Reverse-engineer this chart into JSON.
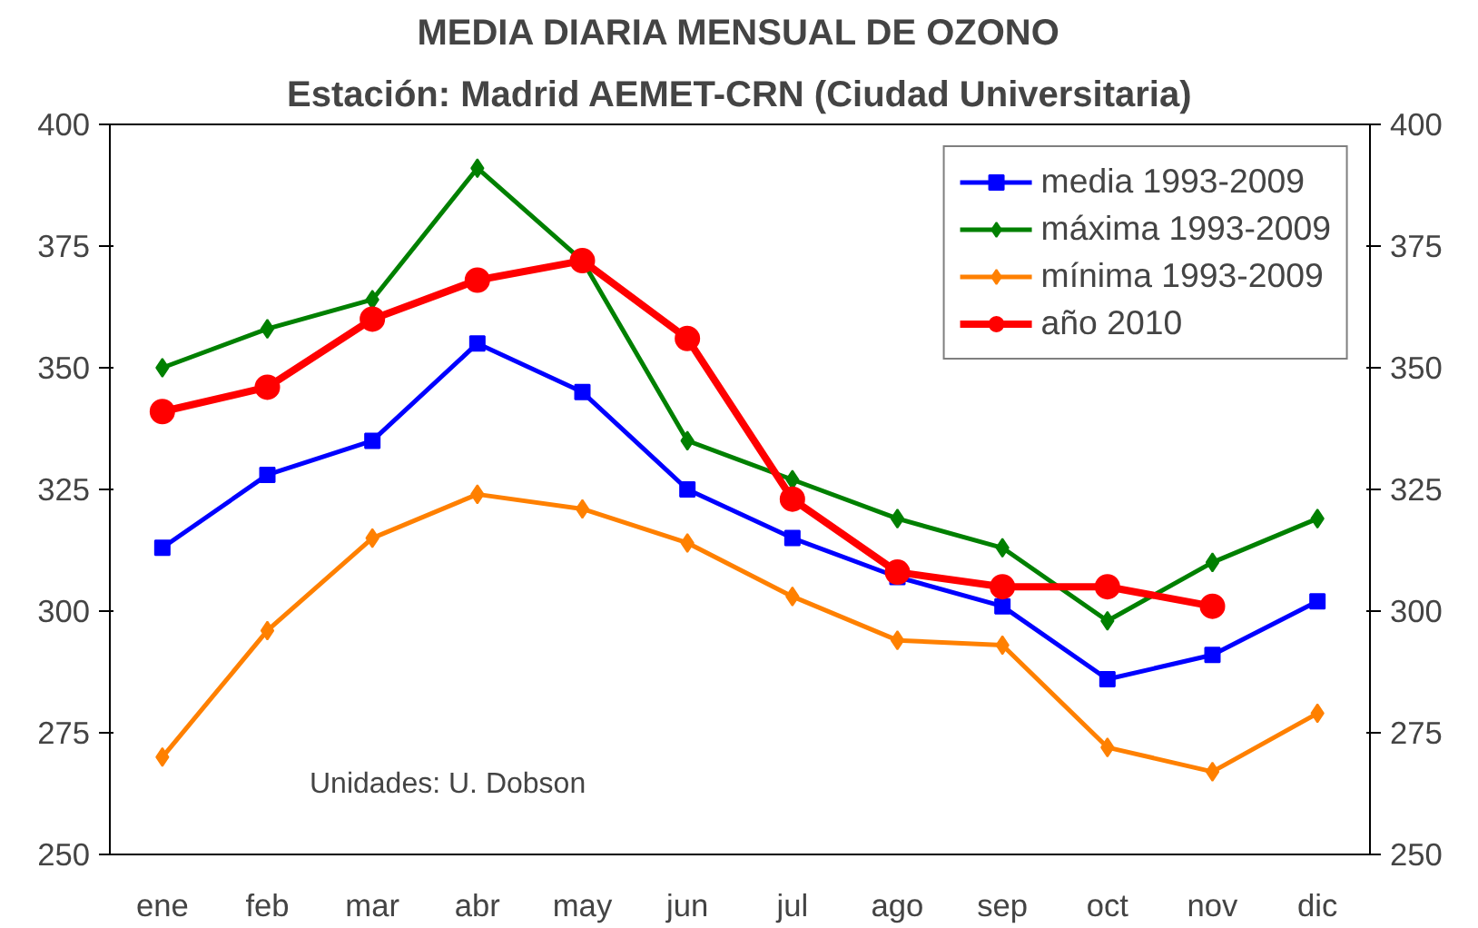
{
  "chart_data": {
    "type": "line",
    "title": "MEDIA DIARIA MENSUAL DE OZONO",
    "subtitle": "Estación: Madrid AEMET-CRN (Ciudad Universitaria)",
    "categories": [
      "ene",
      "feb",
      "mar",
      "abr",
      "may",
      "jun",
      "jul",
      "ago",
      "sep",
      "oct",
      "nov",
      "dic"
    ],
    "series": [
      {
        "name": "media 1993-2009",
        "color": "#0000ff",
        "marker": "square",
        "values": [
          313,
          328,
          335,
          355,
          345,
          325,
          315,
          307,
          301,
          286,
          291,
          302
        ]
      },
      {
        "name": "máxima 1993-2009",
        "color": "#008000",
        "marker": "diamond",
        "values": [
          350,
          358,
          364,
          391,
          372,
          335,
          327,
          319,
          313,
          298,
          310,
          319
        ]
      },
      {
        "name": "mínima 1993-2009",
        "color": "#ff8000",
        "marker": "diamond",
        "values": [
          270,
          296,
          315,
          324,
          321,
          314,
          303,
          294,
          293,
          272,
          267,
          279
        ]
      },
      {
        "name": "año 2010",
        "color": "#ff0000",
        "marker": "circle",
        "values": [
          341,
          346,
          360,
          368,
          372,
          356,
          323,
          308,
          305,
          305,
          301,
          null
        ]
      }
    ],
    "ylim": [
      250,
      400
    ],
    "yticks": [
      250,
      275,
      300,
      325,
      350,
      375,
      400
    ],
    "y2lim": [
      250,
      400
    ],
    "y2ticks": [
      250,
      275,
      300,
      325,
      350,
      375,
      400
    ],
    "annotations": [
      "Unidades: U. Dobson"
    ],
    "legend": "top right",
    "grid": false,
    "line_style": "solid"
  }
}
